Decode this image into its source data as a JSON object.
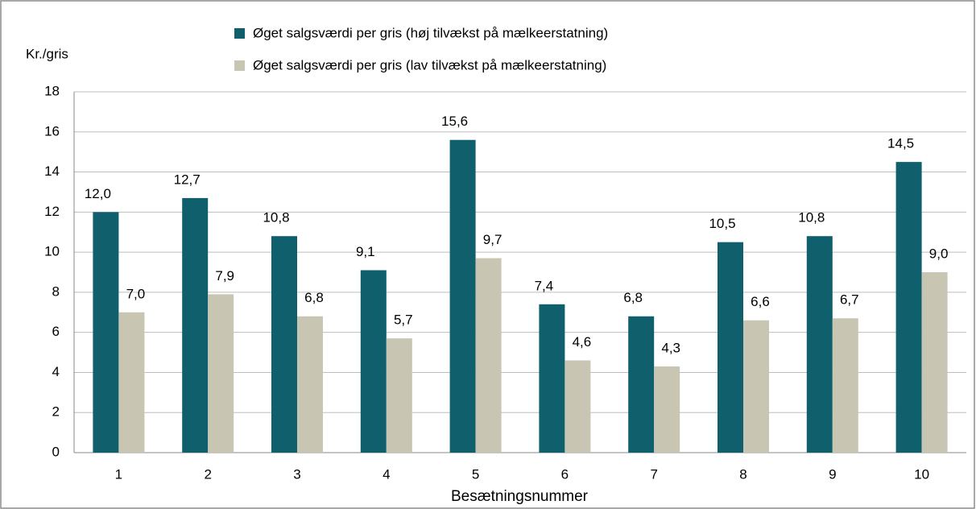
{
  "chart_data": {
    "type": "bar",
    "y_label": "Kr./gris",
    "x_label": "Besætningsnummer",
    "categories": [
      "1",
      "2",
      "3",
      "4",
      "5",
      "6",
      "7",
      "8",
      "9",
      "10"
    ],
    "series": [
      {
        "name": "Øget salgsværdi per gris (høj tilvækst på mælkeerstatning)",
        "color": "#0f5f6d",
        "values": [
          12.0,
          12.7,
          10.8,
          9.1,
          15.6,
          7.4,
          6.8,
          10.5,
          10.8,
          14.5
        ],
        "value_labels": [
          "12,0",
          "12,7",
          "10,8",
          "9,1",
          "15,6",
          "7,4",
          "6,8",
          "10,5",
          "10,8",
          "14,5"
        ]
      },
      {
        "name": "Øget salgsværdi per gris (lav tilvækst på mælkeerstatning)",
        "color": "#c8c6b3",
        "values": [
          7.0,
          7.9,
          6.8,
          5.7,
          9.7,
          4.6,
          4.3,
          6.6,
          6.7,
          9.0
        ],
        "value_labels": [
          "7,0",
          "7,9",
          "6,8",
          "5,7",
          "9,7",
          "4,6",
          "4,3",
          "6,6",
          "6,7",
          "9,0"
        ]
      }
    ],
    "ylim": [
      0,
      18
    ],
    "yticks": [
      0,
      2,
      4,
      6,
      8,
      10,
      12,
      14,
      16,
      18
    ],
    "grid": true
  }
}
